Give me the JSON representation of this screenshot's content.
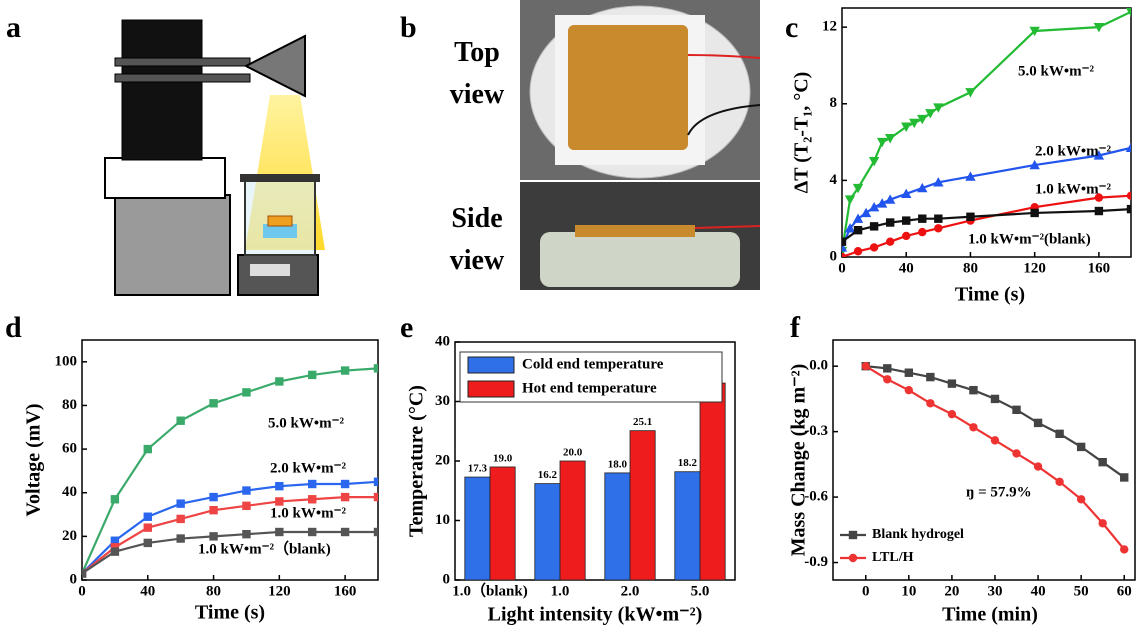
{
  "panels": {
    "a": {
      "label": "a"
    },
    "b": {
      "label": "b",
      "top_label": "Top view",
      "side_label": "Side view"
    }
  },
  "chart_data": [
    {
      "type": "line",
      "panel_label": "c",
      "xlabel": "Time (s)",
      "ylabel": "ΔT (T₂-T₁, °C)",
      "xlim": [
        0,
        180
      ],
      "xticks": [
        0,
        40,
        80,
        120,
        160
      ],
      "ylim": [
        0,
        13
      ],
      "yticks": [
        0,
        4,
        8,
        12
      ],
      "legend": "inline",
      "series": [
        {
          "name": "5.0 kW•m⁻²",
          "color": "#22bb33",
          "marker": "triangle-down",
          "x": [
            0,
            5,
            10,
            20,
            25,
            30,
            40,
            45,
            50,
            55,
            60,
            80,
            120,
            160,
            180
          ],
          "values": [
            0.3,
            3,
            3.6,
            5,
            6,
            6.2,
            6.8,
            7,
            7.2,
            7.5,
            7.8,
            8.6,
            11.8,
            12,
            12.8
          ]
        },
        {
          "name": "2.0 kW•m⁻²",
          "color": "#2255ee",
          "marker": "triangle-up",
          "x": [
            0,
            5,
            10,
            15,
            20,
            25,
            30,
            40,
            50,
            60,
            80,
            120,
            160,
            180
          ],
          "values": [
            0.5,
            1.5,
            2,
            2.3,
            2.6,
            2.8,
            3,
            3.3,
            3.6,
            3.9,
            4.2,
            4.8,
            5.3,
            5.7
          ]
        },
        {
          "name": "1.0 kW•m⁻²",
          "color": "#ee1111",
          "marker": "circle",
          "x": [
            0,
            10,
            20,
            30,
            40,
            50,
            60,
            80,
            120,
            160,
            180
          ],
          "values": [
            0,
            0.3,
            0.5,
            0.8,
            1.1,
            1.3,
            1.5,
            1.9,
            2.6,
            3.1,
            3.2
          ]
        },
        {
          "name": "1.0 kW•m⁻²(blank)",
          "color": "#111111",
          "marker": "square",
          "x": [
            0,
            10,
            20,
            30,
            40,
            50,
            60,
            80,
            120,
            160,
            180
          ],
          "values": [
            0.8,
            1.4,
            1.6,
            1.8,
            1.9,
            2.0,
            2.0,
            2.1,
            2.3,
            2.4,
            2.5
          ]
        }
      ]
    },
    {
      "type": "line",
      "panel_label": "d",
      "xlabel": "Time (s)",
      "ylabel": "Voltage (mV)",
      "xlim": [
        0,
        180
      ],
      "xticks": [
        0,
        40,
        80,
        120,
        160
      ],
      "ylim": [
        0,
        110
      ],
      "yticks": [
        0,
        20,
        40,
        60,
        80,
        100
      ],
      "legend": "inline",
      "series": [
        {
          "name": "5.0 kW•m⁻²",
          "color": "#3aaa6a",
          "marker": "square",
          "x": [
            0,
            20,
            40,
            60,
            80,
            100,
            120,
            140,
            160,
            180
          ],
          "values": [
            3,
            37,
            60,
            73,
            81,
            86,
            91,
            94,
            96,
            97
          ]
        },
        {
          "name": "2.0 kW•m⁻²",
          "color": "#2a66ee",
          "marker": "square",
          "x": [
            0,
            20,
            40,
            60,
            80,
            100,
            120,
            140,
            160,
            180
          ],
          "values": [
            3,
            18,
            29,
            35,
            38,
            41,
            43,
            44,
            44,
            45
          ]
        },
        {
          "name": "1.0 kW•m⁻²",
          "color": "#ee4444",
          "marker": "square",
          "x": [
            0,
            20,
            40,
            60,
            80,
            100,
            120,
            140,
            160,
            180
          ],
          "values": [
            3,
            15,
            24,
            28,
            32,
            34,
            36,
            37,
            38,
            38
          ]
        },
        {
          "name": "1.0 kW•m⁻²（blank)",
          "color": "#555555",
          "marker": "square",
          "x": [
            0,
            20,
            40,
            60,
            80,
            100,
            120,
            140,
            160,
            180
          ],
          "values": [
            3,
            13,
            17,
            19,
            20,
            21,
            22,
            22,
            22,
            22
          ]
        }
      ]
    },
    {
      "type": "bar",
      "panel_label": "e",
      "xlabel": "Light intensity (kW•m⁻²)",
      "ylabel": "Temperature (°C)",
      "categories": [
        "1.0（blank)",
        "1.0",
        "2.0",
        "5.0"
      ],
      "ylim": [
        0,
        40
      ],
      "yticks": [
        0,
        10,
        20,
        30,
        40
      ],
      "legend": "upper left",
      "series": [
        {
          "name": "Cold end temperature",
          "color": "#2f6fe8",
          "values": [
            17.3,
            16.2,
            18,
            18.2
          ],
          "value_labels": [
            "17.3",
            "16.2",
            "18.0",
            "18.2"
          ]
        },
        {
          "name": "Hot end temperature",
          "color": "#ee1c1c",
          "values": [
            19,
            20,
            25.1,
            33.1
          ],
          "value_labels": [
            "19.0",
            "20.0",
            "25.1",
            "33.1"
          ]
        }
      ]
    },
    {
      "type": "line",
      "panel_label": "f",
      "xlabel": "Time (min)",
      "ylabel": "Mass Change (kg m⁻²)",
      "xlim": [
        -7.6,
        62.5
      ],
      "xticks": [
        0,
        10,
        20,
        30,
        40,
        50,
        60
      ],
      "ylim": [
        -0.98,
        0.12
      ],
      "yticks": [
        {
          "value": 0,
          "label": "0.0"
        },
        -0.3,
        -0.6,
        -0.9
      ],
      "legend": "lower left",
      "annotation": "ŋ = 57.9%",
      "series": [
        {
          "name": "Blank hydrogel",
          "color": "#444444",
          "marker": "square",
          "x": [
            0,
            5,
            10,
            15,
            20,
            25,
            30,
            35,
            40,
            45,
            50,
            55,
            60
          ],
          "values": [
            0,
            -0.01,
            -0.03,
            -0.05,
            -0.08,
            -0.11,
            -0.15,
            -0.2,
            -0.26,
            -0.31,
            -0.37,
            -0.44,
            -0.51
          ]
        },
        {
          "name": "LTL/H",
          "color": "#ee3333",
          "marker": "circle",
          "x": [
            0,
            5,
            10,
            15,
            20,
            25,
            30,
            35,
            40,
            45,
            50,
            55,
            60
          ],
          "values": [
            0,
            -0.06,
            -0.11,
            -0.17,
            -0.22,
            -0.28,
            -0.34,
            -0.4,
            -0.46,
            -0.53,
            -0.61,
            -0.72,
            -0.84
          ]
        }
      ]
    }
  ]
}
